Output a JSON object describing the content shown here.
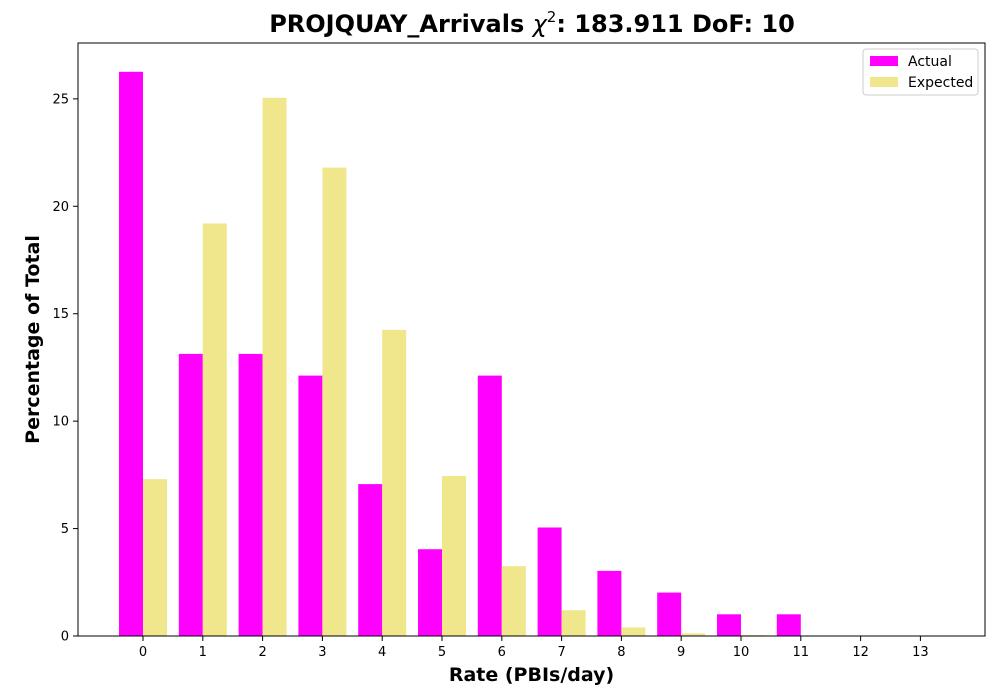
{
  "chart_data": {
    "type": "bar",
    "title": "PROJQUAY_Arrivals",
    "title_chi_symbol": "χ",
    "title_chi_superscript": "2",
    "title_stats": ": 183.911 DoF: 10",
    "xlabel": "Rate (PBIs/day)",
    "ylabel": "Percentage of Total",
    "categories": [
      "0",
      "1",
      "2",
      "3",
      "4",
      "5",
      "6",
      "7",
      "8",
      "9",
      "10",
      "11",
      "12",
      "13"
    ],
    "ylim": [
      0,
      27.6
    ],
    "yticks": [
      0,
      5,
      10,
      15,
      20,
      25
    ],
    "series": [
      {
        "name": "Actual",
        "color": "#ff00ff",
        "values": [
          26.26,
          13.13,
          13.13,
          12.12,
          7.07,
          4.04,
          12.12,
          5.05,
          3.03,
          2.02,
          1.01,
          1.01,
          0,
          0
        ]
      },
      {
        "name": "Expected",
        "color": "#f0e68c",
        "values": [
          7.3,
          19.2,
          25.05,
          21.8,
          14.25,
          7.45,
          3.25,
          1.2,
          0.4,
          0.12,
          0.04,
          0.01,
          0,
          0
        ]
      }
    ],
    "legend_position": "top-right",
    "grid": false
  }
}
